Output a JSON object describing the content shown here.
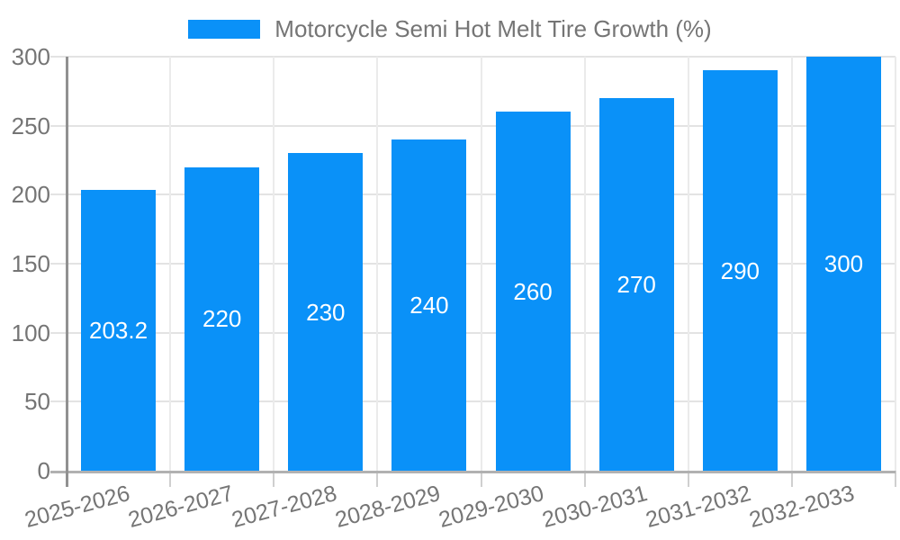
{
  "chart_data": {
    "type": "bar",
    "title": "",
    "legend": "Motorcycle Semi Hot Melt Tire Growth (%)",
    "legend_position": "top-center",
    "categories": [
      "2025-2026",
      "2026-2027",
      "2027-2028",
      "2028-2029",
      "2029-2030",
      "2030-2031",
      "2031-2032",
      "2032-2033"
    ],
    "values": [
      203.2,
      220,
      230,
      240,
      260,
      270,
      290,
      300
    ],
    "value_labels": [
      "203.2",
      "220",
      "230",
      "240",
      "260",
      "270",
      "290",
      "300"
    ],
    "xlabel": "",
    "ylabel": "",
    "ylim": [
      0,
      300
    ],
    "yticks": [
      0,
      50,
      100,
      150,
      200,
      250,
      300
    ],
    "grid": true,
    "colors": {
      "bar": "#0a91f8",
      "tick_label": "#757575",
      "value_label": "#ffffff",
      "grid_line": "#e3e3e3",
      "vgrid_line": "#ebebeb",
      "y_axis_line": "#919191",
      "x_axis_line": "#b1b1b1",
      "x_tick": "#cfcfcf"
    }
  }
}
